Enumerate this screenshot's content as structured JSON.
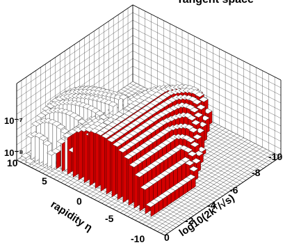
{
  "chart_data": {
    "type": "lego3d",
    "title": "Tangent space",
    "xlabel": "log10(2kᵀ/√s)",
    "ylabel": "rapidity η",
    "zlabel": "",
    "x_ticks": [
      "-10",
      "-8",
      "-6",
      "-4",
      "-2",
      "0"
    ],
    "y_ticks": [
      "10",
      "5",
      "0",
      "-5",
      "-10"
    ],
    "z_ticks": [
      "10⁻⁸",
      "10⁻⁷"
    ],
    "xlim": [
      -10,
      0
    ],
    "ylim": [
      -10,
      10
    ],
    "zlim": [
      1e-08,
      6e-07
    ],
    "log_z": true,
    "grid": true,
    "series": [
      {
        "description_of_ridge": "forward ridge along log10(2kT/sqrt(s)), peak near eta=0",
        "eta_half_width_at_log_min": 7,
        "peak_value": 2e-07,
        "bar_color": "#d40000"
      },
      {
        "description_of_ridge": "backward ridge along rapidity, peak near log10=-3",
        "peak_value": 5e-07,
        "bar_color": "#ffffff"
      }
    ],
    "colors": {
      "front_face": "#d40000",
      "top_face": "#ffffff",
      "grid": "#000000"
    }
  }
}
